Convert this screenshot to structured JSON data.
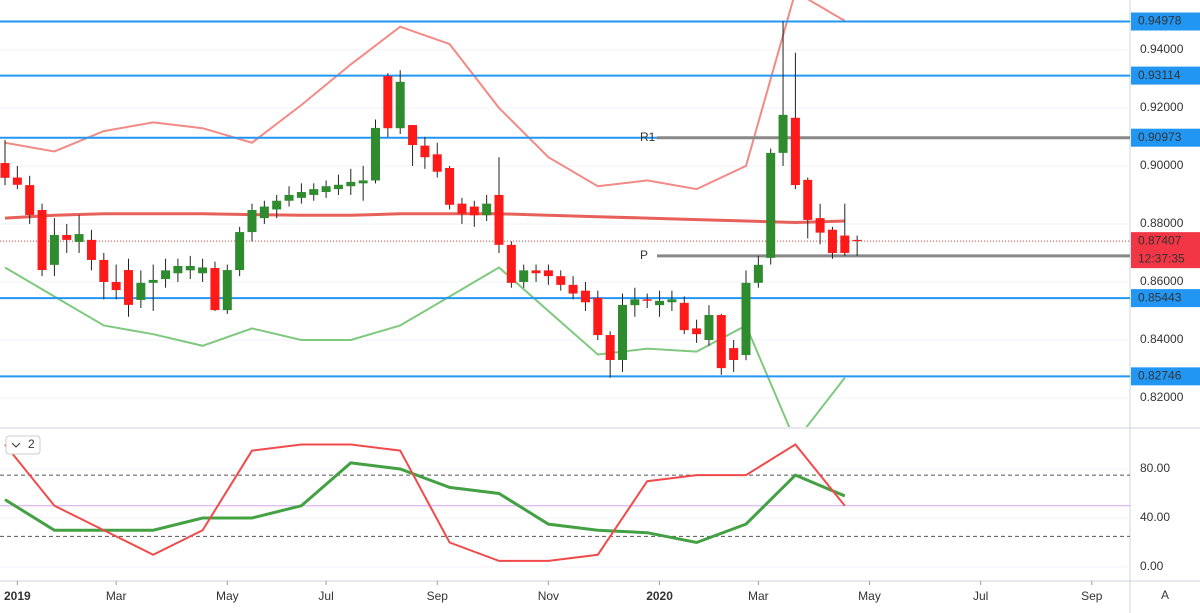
{
  "chart_data": [
    {
      "type": "candlestick",
      "categories": [
        null,
        "2019",
        null,
        null,
        null,
        null,
        null,
        null,
        null,
        "Mar",
        null,
        null,
        null,
        null,
        null,
        null,
        null,
        null,
        "May",
        null,
        null,
        null,
        null,
        null,
        null,
        null,
        "Jul",
        null,
        null,
        null,
        null,
        null,
        null,
        null,
        null,
        "Sep",
        null,
        null,
        null,
        null,
        null,
        null,
        null,
        null,
        "Nov",
        null,
        null,
        null,
        null,
        null,
        null,
        null,
        null,
        "2020",
        null,
        null,
        null,
        null,
        null,
        null,
        null,
        "Mar",
        null,
        null,
        null,
        null,
        null,
        null,
        null,
        null,
        "May",
        null,
        null,
        null,
        null,
        null,
        null,
        null,
        null,
        "Jul",
        null,
        null,
        null,
        null,
        null,
        null,
        null,
        null,
        "Sep"
      ],
      "open": [
        0.901,
        0.896,
        0.8934,
        0.8848,
        0.8659,
        0.8762,
        0.8738,
        0.8745,
        0.8676,
        0.86,
        0.8641,
        0.8538,
        0.8597,
        0.861,
        0.863,
        0.864,
        0.863,
        0.8648,
        0.8503,
        0.8641,
        0.8772,
        0.882,
        0.885,
        0.888,
        0.889,
        0.89,
        0.891,
        0.892,
        0.893,
        0.894,
        0.895,
        0.931,
        0.913,
        0.9141,
        0.907,
        0.904,
        0.8993,
        0.887,
        0.886,
        0.883,
        0.89,
        0.8728,
        0.86,
        0.864,
        0.864,
        0.862,
        0.859,
        0.857,
        0.8545,
        0.8417,
        0.8331,
        0.852,
        0.854,
        0.852,
        0.853,
        0.8528,
        0.844,
        0.84,
        0.8486,
        0.8372,
        0.8348,
        0.8597,
        0.8683,
        0.9045,
        0.9166,
        0.8952,
        0.882,
        0.878,
        0.876,
        0.8745,
        null,
        null,
        null,
        null,
        null,
        null,
        null,
        null,
        null,
        null,
        null,
        null,
        null,
        null,
        null,
        null,
        null,
        null,
        null
      ],
      "high": [
        0.909,
        0.9,
        0.8966,
        0.887,
        0.882,
        0.88,
        0.883,
        0.878,
        0.87,
        0.866,
        0.868,
        0.864,
        0.866,
        0.868,
        0.868,
        0.869,
        0.868,
        0.867,
        0.866,
        0.879,
        0.887,
        0.888,
        0.89,
        0.893,
        0.894,
        0.894,
        0.895,
        0.897,
        0.899,
        0.9,
        0.916,
        0.932,
        0.933,
        0.914,
        0.91,
        0.908,
        0.9,
        0.889,
        0.888,
        0.89,
        0.903,
        0.874,
        0.866,
        0.866,
        0.866,
        0.864,
        0.862,
        0.86,
        0.857,
        0.843,
        0.856,
        0.858,
        0.856,
        0.857,
        0.857,
        0.855,
        0.847,
        0.852,
        0.849,
        0.84,
        0.864,
        0.869,
        0.906,
        0.9498,
        0.939,
        0.896,
        0.887,
        0.879,
        0.887,
        0.876,
        null,
        null,
        null,
        null,
        null,
        null,
        null,
        null,
        null,
        null,
        null,
        null,
        null,
        null,
        null,
        null,
        null,
        null,
        null
      ],
      "low": [
        0.8934,
        0.892,
        0.88,
        0.862,
        0.862,
        0.87,
        0.87,
        0.864,
        0.854,
        0.854,
        0.848,
        0.851,
        0.85,
        0.858,
        0.86,
        0.861,
        0.86,
        0.85,
        0.849,
        0.862,
        0.874,
        0.88,
        0.882,
        0.886,
        0.887,
        0.888,
        0.889,
        0.89,
        0.89,
        0.888,
        0.894,
        0.91,
        0.911,
        0.9,
        0.899,
        0.896,
        0.885,
        0.88,
        0.879,
        0.881,
        0.87,
        0.858,
        0.858,
        0.86,
        0.859,
        0.857,
        0.854,
        0.85,
        0.84,
        0.827,
        0.829,
        0.848,
        0.851,
        0.848,
        0.85,
        0.842,
        0.839,
        0.838,
        0.828,
        0.829,
        0.833,
        0.858,
        0.866,
        0.9,
        0.892,
        0.875,
        0.873,
        0.868,
        0.869,
        0.869,
        null,
        null,
        null,
        null,
        null,
        null,
        null,
        null,
        null,
        null,
        null,
        null,
        null,
        null,
        null,
        null,
        null,
        null,
        null
      ],
      "close": [
        0.8959,
        0.8935,
        0.8831,
        0.8641,
        0.8762,
        0.8745,
        0.8765,
        0.8676,
        0.86,
        0.8572,
        0.8521,
        0.8597,
        0.8607,
        0.864,
        0.8655,
        0.8655,
        0.865,
        0.8503,
        0.8641,
        0.8772,
        0.8848,
        0.886,
        0.888,
        0.89,
        0.891,
        0.892,
        0.893,
        0.8935,
        0.8945,
        0.895,
        0.9131,
        0.913,
        0.929,
        0.9072,
        0.903,
        0.898,
        0.8866,
        0.8835,
        0.883,
        0.887,
        0.8728,
        0.8597,
        0.864,
        0.863,
        0.862,
        0.859,
        0.856,
        0.853,
        0.8417,
        0.8331,
        0.8521,
        0.854,
        0.8535,
        0.8535,
        0.854,
        0.8434,
        0.842,
        0.8486,
        0.8303,
        0.8331,
        0.8597,
        0.8659,
        0.9045,
        0.9176,
        0.8934,
        0.8814,
        0.877,
        0.87,
        0.87,
        0.8741,
        null,
        null,
        null,
        null,
        null,
        null,
        null,
        null,
        null,
        null,
        null,
        null,
        null,
        null,
        null,
        null,
        null,
        null,
        null
      ],
      "up_color": "#2e8b2e",
      "down_color": "#ff1a1a",
      "ylim": [
        0.81,
        0.9572
      ],
      "yticks": [
        {
          "value": 0.94,
          "label": "0.94000"
        },
        {
          "value": 0.92,
          "label": "0.92000"
        },
        {
          "value": 0.9,
          "label": "0.90000"
        },
        {
          "value": 0.88,
          "label": "0.88000"
        },
        {
          "value": 0.86,
          "label": "0.86000"
        },
        {
          "value": 0.84,
          "label": "0.84000"
        },
        {
          "value": 0.82,
          "label": "0.82000"
        }
      ],
      "series": [
        {
          "color": "#e8605a",
          "x": [
            0,
            4,
            8,
            12,
            16,
            20,
            24,
            28,
            32,
            36,
            40,
            44,
            48,
            52,
            56,
            60,
            64,
            68
          ],
          "values": [
            0.882,
            0.883,
            0.8835,
            0.8835,
            0.8835,
            0.8832,
            0.883,
            0.883,
            0.8835,
            0.8835,
            0.8835,
            0.883,
            0.8825,
            0.882,
            0.8815,
            0.881,
            0.8805,
            0.881
          ]
        },
        {
          "color": "#f28a85",
          "x": [
            0,
            4,
            8,
            12,
            16,
            20,
            24,
            28,
            32,
            36,
            40,
            44,
            48,
            52,
            56,
            60,
            64,
            68
          ],
          "values": [
            0.908,
            0.905,
            0.912,
            0.915,
            0.913,
            0.908,
            0.921,
            0.935,
            0.948,
            0.942,
            0.92,
            0.903,
            0.893,
            0.895,
            0.892,
            0.9,
            0.96,
            0.95
          ]
        },
        {
          "color": "#7fc97f",
          "x": [
            0,
            4,
            8,
            12,
            16,
            20,
            24,
            28,
            32,
            36,
            40,
            44,
            48,
            52,
            56,
            60,
            64,
            68
          ],
          "values": [
            0.865,
            0.855,
            0.845,
            0.842,
            0.838,
            0.844,
            0.84,
            0.84,
            0.845,
            0.855,
            0.865,
            0.85,
            0.835,
            0.837,
            0.836,
            0.845,
            0.805,
            0.827
          ]
        }
      ],
      "levels": [
        0.94978,
        0.93114,
        0.90973,
        0.85443,
        0.82746
      ],
      "level_color": "#2196f3",
      "pivots": [
        {
          "label": "R1",
          "value": 0.90973
        },
        {
          "label": "P",
          "value": 0.869
        }
      ],
      "current_price": 0.87407,
      "countdown": "12:37:35"
    },
    {
      "type": "line",
      "ylim": [
        -10.6,
        111.8
      ],
      "yticks": [
        {
          "value": 80,
          "label": "80.00"
        },
        {
          "value": 40,
          "label": "40.00"
        },
        {
          "value": 0,
          "label": "0.00"
        }
      ],
      "levels": [
        25,
        50,
        75
      ],
      "level_colors": [
        "#555555",
        "#d9a6f0",
        "#555555"
      ],
      "series": [
        {
          "color": "#43a043",
          "x": [
            0,
            4,
            8,
            12,
            16,
            20,
            24,
            28,
            32,
            36,
            40,
            44,
            48,
            52,
            56,
            60,
            64,
            68
          ],
          "values": [
            55,
            30,
            30,
            30,
            40,
            40,
            50,
            85,
            80,
            65,
            60,
            35,
            30,
            28,
            20,
            35,
            75,
            58
          ]
        },
        {
          "color": "#f04a4a",
          "x": [
            0,
            4,
            8,
            12,
            16,
            20,
            24,
            28,
            32,
            36,
            40,
            44,
            48,
            52,
            56,
            60,
            64,
            68
          ],
          "values": [
            100,
            50,
            30,
            10,
            30,
            95,
            100,
            100,
            95,
            20,
            5,
            5,
            10,
            70,
            75,
            75,
            100,
            50
          ]
        }
      ],
      "indicator_label": "2",
      "scale_button": "A"
    }
  ]
}
